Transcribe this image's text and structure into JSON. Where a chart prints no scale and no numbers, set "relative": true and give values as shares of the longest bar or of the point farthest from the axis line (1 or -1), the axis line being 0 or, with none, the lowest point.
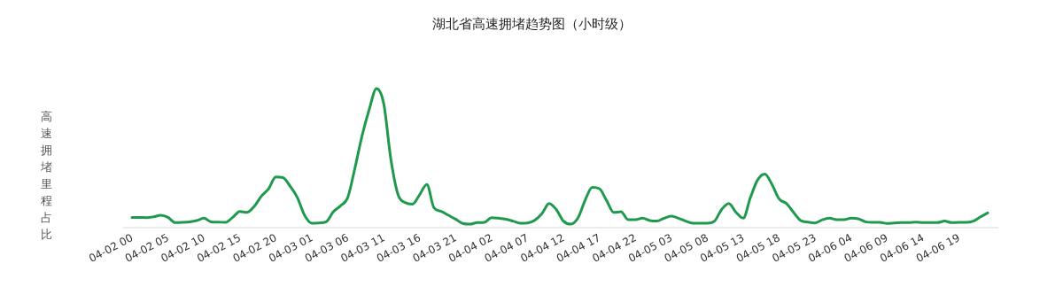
{
  "chart_data": {
    "type": "line",
    "title": "湖北省高速拥堵趋势图（小时级）",
    "ylabel": "高速拥堵里程占比",
    "relative": true,
    "categories": [
      "04-02 00",
      null,
      null,
      null,
      null,
      "04-02 05",
      null,
      null,
      null,
      null,
      "04-02 10",
      null,
      null,
      null,
      null,
      "04-02 15",
      null,
      null,
      null,
      null,
      "04-02 20",
      null,
      null,
      null,
      null,
      "04-03 01",
      null,
      null,
      null,
      null,
      "04-03 06",
      null,
      null,
      null,
      null,
      "04-03 11",
      null,
      null,
      null,
      null,
      "04-03 16",
      null,
      null,
      null,
      null,
      "04-03 21",
      null,
      null,
      null,
      null,
      "04-04 02",
      null,
      null,
      null,
      null,
      "04-04 07",
      null,
      null,
      null,
      null,
      "04-04 12",
      null,
      null,
      null,
      null,
      "04-04 17",
      null,
      null,
      null,
      null,
      "04-04 22",
      null,
      null,
      null,
      null,
      "04-05 03",
      null,
      null,
      null,
      null,
      "04-05 08",
      null,
      null,
      null,
      null,
      "04-05 13",
      null,
      null,
      null,
      null,
      "04-05 18",
      null,
      null,
      null,
      null,
      "04-05 23",
      null,
      null,
      null,
      null,
      "04-06 04",
      null,
      null,
      null,
      null,
      "04-06 09",
      null,
      null,
      null,
      null,
      "04-06 14",
      null,
      null,
      null,
      null,
      "04-06 19",
      null,
      null,
      null,
      null
    ],
    "series": [
      {
        "color": "#1f9a4c",
        "values": [
          0.074,
          0.074,
          0.072,
          0.078,
          0.089,
          0.074,
          0.036,
          0.038,
          0.042,
          0.051,
          0.068,
          0.042,
          0.04,
          0.038,
          0.074,
          0.117,
          0.11,
          0.153,
          0.227,
          0.28,
          0.364,
          0.36,
          0.297,
          0.216,
          0.089,
          0.032,
          0.034,
          0.042,
          0.114,
          0.157,
          0.216,
          0.428,
          0.661,
          0.852,
          1.0,
          0.894,
          0.492,
          0.237,
          0.18,
          0.169,
          0.237,
          0.311,
          0.142,
          0.117,
          0.089,
          0.061,
          0.03,
          0.025,
          0.036,
          0.038,
          0.072,
          0.068,
          0.061,
          0.047,
          0.032,
          0.034,
          0.053,
          0.1,
          0.174,
          0.131,
          0.047,
          0.025,
          0.068,
          0.195,
          0.29,
          0.28,
          0.195,
          0.11,
          0.114,
          0.057,
          0.057,
          0.068,
          0.051,
          0.047,
          0.068,
          0.083,
          0.068,
          0.047,
          0.032,
          0.032,
          0.032,
          0.047,
          0.131,
          0.174,
          0.11,
          0.068,
          0.216,
          0.343,
          0.386,
          0.311,
          0.206,
          0.174,
          0.11,
          0.051,
          0.04,
          0.034,
          0.057,
          0.068,
          0.057,
          0.057,
          0.068,
          0.064,
          0.042,
          0.038,
          0.038,
          0.03,
          0.034,
          0.036,
          0.036,
          0.04,
          0.036,
          0.036,
          0.036,
          0.047,
          0.036,
          0.038,
          0.038,
          0.047,
          0.078,
          0.106
        ]
      }
    ]
  }
}
